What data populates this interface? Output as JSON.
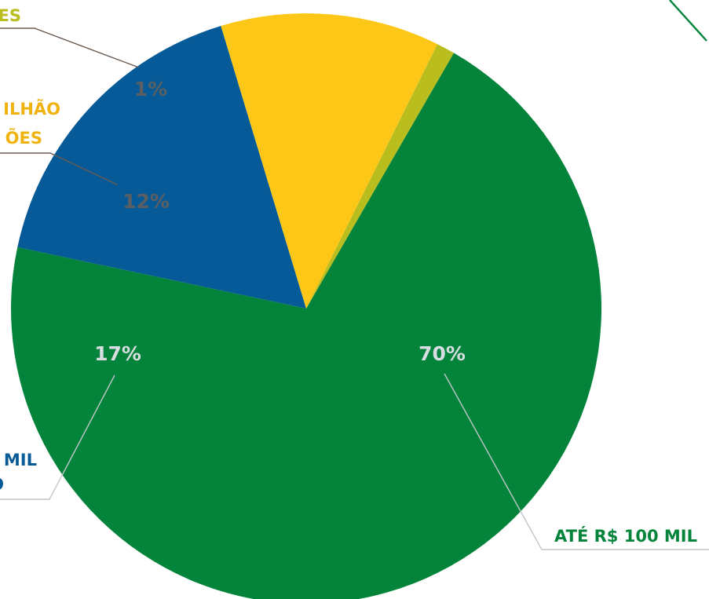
{
  "chart_data": {
    "type": "pie",
    "slices": [
      {
        "label": "ATÉ R$ 100 MIL",
        "label_lines": [
          "ATÉ R$ 100 MIL"
        ],
        "value": 70,
        "value_label": "70%",
        "color": "#03843a",
        "label_color": "#03843a",
        "value_color": "#d8dde2"
      },
      {
        "label": "MIL …O",
        "label_lines": [
          "MIL",
          "O"
        ],
        "value": 17,
        "value_label": "17%",
        "color": "#055a97",
        "label_color": "#055a97",
        "value_color": "#d8dde2"
      },
      {
        "label": "ILHÃO ÕES",
        "label_lines": [
          "ILHÃO",
          "ÕES"
        ],
        "value": 12,
        "value_label": "12%",
        "color": "#fdc718",
        "label_color": "#f0b30e",
        "value_color": "#5b5f61"
      },
      {
        "label": "ES",
        "label_lines": [
          "ES"
        ],
        "value": 1,
        "value_label": "1%",
        "color": "#b9bd1e",
        "label_color": "#b9bd1e",
        "value_color": "#5b5f61"
      }
    ]
  },
  "colors": {
    "leader_dark": "#6b5a52",
    "leader_light": "#c0c6cc",
    "corner_line": "#03843a"
  }
}
